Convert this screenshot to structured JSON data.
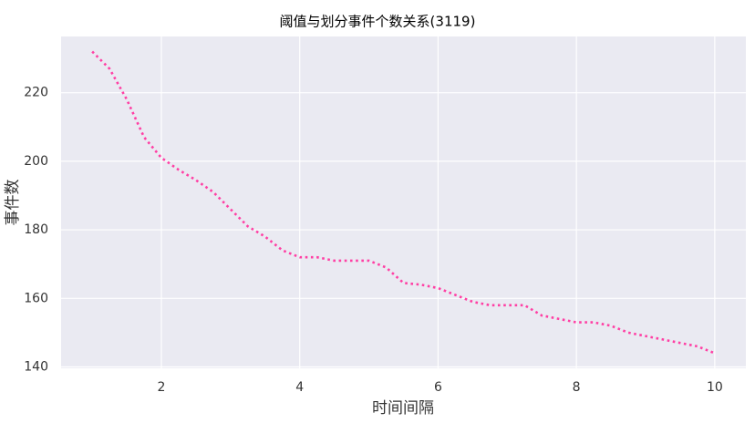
{
  "chart_data": {
    "type": "line",
    "title": "阈值与划分事件个数关系(3119)",
    "x_label": "时间间隔",
    "y_label": "事件数",
    "x": [
      1,
      1.25,
      1.5,
      1.75,
      2,
      2.25,
      2.5,
      2.75,
      3,
      3.25,
      3.5,
      3.75,
      4,
      4.25,
      4.5,
      4.75,
      5,
      5.25,
      5.5,
      5.75,
      6,
      6.25,
      6.5,
      6.75,
      7,
      7.25,
      7.5,
      7.75,
      8,
      8.25,
      8.5,
      8.75,
      9,
      9.25,
      9.5,
      9.75,
      10
    ],
    "series": [
      {
        "color": "#ff3fa4",
        "values": [
          232,
          227,
          218,
          207,
          201,
          197.5,
          194.5,
          191,
          186,
          181,
          178,
          174,
          172,
          172,
          171,
          171,
          171,
          169,
          164.5,
          164,
          163,
          161,
          159,
          158,
          158,
          158,
          155,
          154,
          153,
          153,
          152,
          150,
          149,
          148,
          147,
          146,
          144
        ]
      }
    ],
    "xlim": [
      0.55,
      10.45
    ],
    "ylim": [
      139.6,
      236.4
    ],
    "xticks": [
      2,
      4,
      6,
      8,
      10
    ],
    "yticks": [
      140,
      160,
      180,
      200,
      220
    ],
    "grid": true
  }
}
